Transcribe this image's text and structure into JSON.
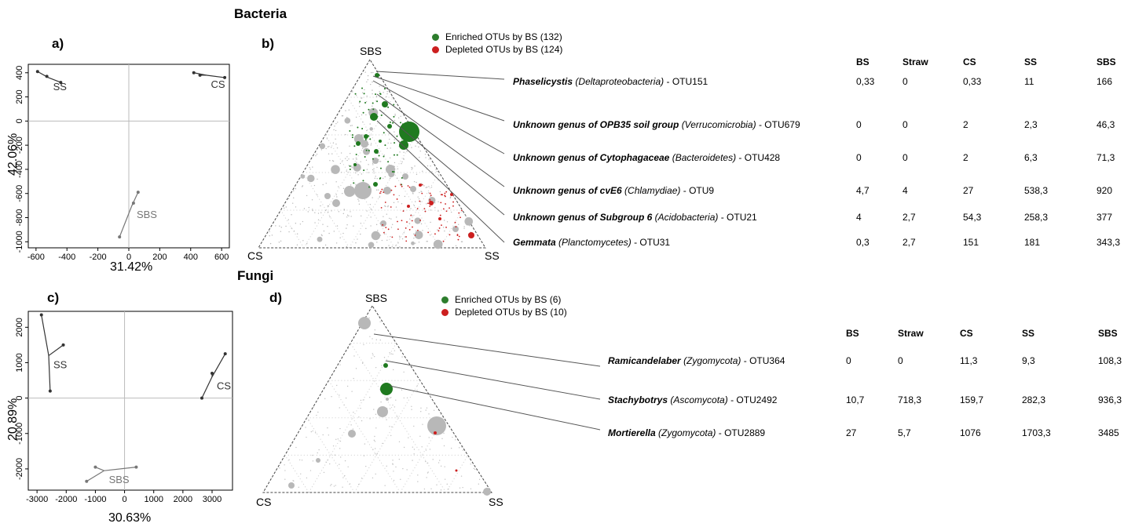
{
  "titles": {
    "bacteria": "Bacteria",
    "fungi": "Fungi"
  },
  "panel_labels": {
    "a": "a)",
    "b": "b)",
    "c": "c)",
    "d": "d)"
  },
  "colors": {
    "enriched": "#2d7d2d",
    "depleted": "#cc1f1f",
    "background": "#b8b8b8"
  },
  "chart_data": [
    {
      "id": "a",
      "type": "scatter",
      "xlabel": "31.42%",
      "ylabel": "42.06%",
      "xlim": [
        -650,
        650
      ],
      "ylim": [
        -1050,
        470
      ],
      "xticks": [
        -600,
        -400,
        -200,
        0,
        200,
        400,
        600
      ],
      "yticks": [
        -1000,
        -800,
        -600,
        -400,
        -200,
        0,
        200,
        400
      ],
      "groups": [
        {
          "name": "SS",
          "centroid": [
            -520,
            360
          ],
          "points": [
            [
              -590,
              410
            ],
            [
              -440,
              320
            ],
            [
              -530,
              370
            ]
          ]
        },
        {
          "name": "CS",
          "centroid": [
            500,
            380
          ],
          "points": [
            [
              420,
              400
            ],
            [
              620,
              360
            ],
            [
              460,
              380
            ]
          ]
        },
        {
          "name": "SBS",
          "centroid": [
            20,
            -700
          ],
          "points": [
            [
              60,
              -590
            ],
            [
              -60,
              -960
            ],
            [
              30,
              -680
            ]
          ]
        }
      ]
    },
    {
      "id": "c",
      "type": "scatter",
      "xlabel": "30.63%",
      "ylabel": "20.89%",
      "xlim": [
        -3300,
        3700
      ],
      "ylim": [
        -2600,
        2450
      ],
      "xticks": [
        -3000,
        -2000,
        -1000,
        0,
        1000,
        2000,
        3000
      ],
      "yticks": [
        -2000,
        -1000,
        0,
        1000,
        2000
      ],
      "groups": [
        {
          "name": "SS",
          "centroid": [
            -2600,
            1200
          ],
          "points": [
            [
              -2850,
              2350
            ],
            [
              -2100,
              1500
            ],
            [
              -2550,
              200
            ]
          ]
        },
        {
          "name": "CS",
          "centroid": [
            3000,
            600
          ],
          "points": [
            [
              3450,
              1250
            ],
            [
              2650,
              0
            ],
            [
              3000,
              700
            ]
          ]
        },
        {
          "name": "SBS",
          "centroid": [
            -700,
            -2050
          ],
          "points": [
            [
              -1300,
              -2350
            ],
            [
              -1000,
              -1950
            ],
            [
              400,
              -1950
            ]
          ]
        }
      ]
    },
    {
      "id": "b",
      "type": "ternary",
      "vertices": [
        "SBS",
        "CS",
        "SS"
      ],
      "legend": [
        {
          "label": "Enriched OTUs  by BS (132)",
          "color": "#2d7d2d"
        },
        {
          "label": "Depleted  OTUs  by BS (124)",
          "color": "#cc1f1f"
        }
      ],
      "columns": [
        "BS",
        "Straw",
        "CS",
        "SS",
        "SBS"
      ],
      "rows": [
        {
          "genus": "Phaselicystis",
          "taxon": "(Deltaproteobacteria)",
          "otu": "- OTU151",
          "values": [
            "0,33",
            "0",
            "0,33",
            "11",
            "166"
          ]
        },
        {
          "genus": "Unknown genus of OPB35 soil group",
          "taxon": "(Verrucomicrobia)",
          "otu": "- OTU679",
          "values": [
            "0",
            "0",
            "2",
            "2,3",
            "46,3"
          ]
        },
        {
          "genus": "Unknown genus of Cytophagaceae",
          "taxon": "(Bacteroidetes)",
          "otu": "- OTU428",
          "values": [
            "0",
            "0",
            "2",
            "6,3",
            "71,3"
          ]
        },
        {
          "genus": "Unknown genus of cvE6",
          "taxon": "(Chlamydiae)",
          "otu": "- OTU9",
          "values": [
            "4,7",
            "4",
            "27",
            "538,3",
            "920"
          ]
        },
        {
          "genus": "Unknown genus of Subgroup 6",
          "taxon": "(Acidobacteria)",
          "otu": "- OTU21",
          "values": [
            "4",
            "2,7",
            "54,3",
            "258,3",
            "377"
          ]
        },
        {
          "genus": "Gemmata",
          "taxon": "(Planctomycetes)",
          "otu": "- OTU31",
          "values": [
            "0,3",
            "2,7",
            "151",
            "181",
            "343,3"
          ]
        }
      ]
    },
    {
      "id": "d",
      "type": "ternary",
      "vertices": [
        "SBS",
        "CS",
        "SS"
      ],
      "legend": [
        {
          "label": "Enriched OTUs  by BS (6)",
          "color": "#2d7d2d"
        },
        {
          "label": "Depleted  OTUs  by BS (10)",
          "color": "#cc1f1f"
        }
      ],
      "columns": [
        "BS",
        "Straw",
        "CS",
        "SS",
        "SBS"
      ],
      "rows": [
        {
          "genus": "Ramicandelaber",
          "taxon": "(Zygomycota)",
          "otu": "- OTU364",
          "values": [
            "0",
            "0",
            "11,3",
            "9,3",
            "108,3"
          ]
        },
        {
          "genus": "Stachybotrys",
          "taxon": "(Ascomycota)",
          "otu": "- OTU2492",
          "values": [
            "10,7",
            "718,3",
            "159,7",
            "282,3",
            "936,3"
          ]
        },
        {
          "genus": "Mortierella",
          "taxon": "(Zygomycota)",
          "otu": "- OTU2889",
          "values": [
            "27",
            "5,7",
            "1076",
            "1703,3",
            "3485"
          ]
        }
      ]
    }
  ]
}
